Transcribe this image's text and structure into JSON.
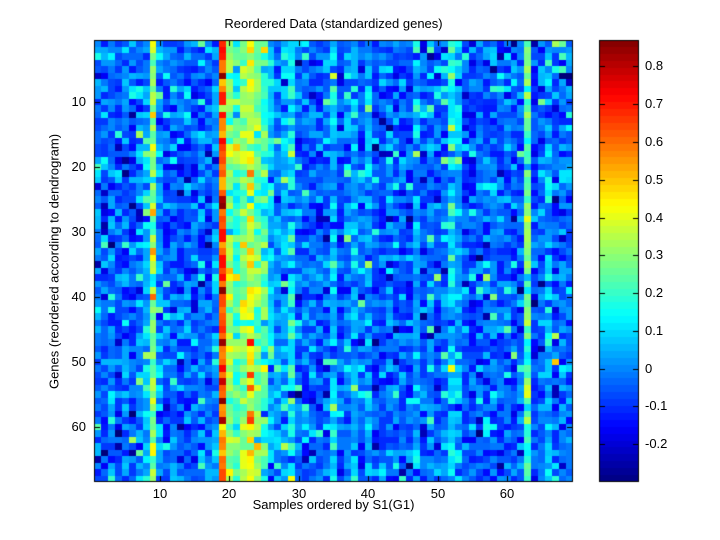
{
  "figure": {
    "background": "#ffffff",
    "text_color": "#000000",
    "axis_color": "#000000"
  },
  "chart_data": {
    "type": "heatmap",
    "title": "Reordered Data (standardized genes)",
    "xlabel": "Samples ordered by S1(G1)",
    "ylabel": "Genes (reordered according to dendrogram)",
    "n_cols": 69,
    "n_rows": 68,
    "x_ticks": [
      10,
      20,
      30,
      40,
      50,
      60
    ],
    "y_ticks": [
      10,
      20,
      30,
      40,
      50,
      60
    ],
    "colormap": "jet",
    "colormap_levels": 64,
    "color_limits": [
      -0.3,
      0.87
    ],
    "colorbar_ticks": [
      "0.8",
      "0.7",
      "0.6",
      "0.5",
      "0.4",
      "0.3",
      "0.2",
      "0.1",
      "0",
      "-0.1",
      "-0.2"
    ],
    "colorbar_tick_values": [
      0.8,
      0.7,
      0.6,
      0.5,
      0.4,
      0.3,
      0.2,
      0.1,
      0,
      -0.1,
      -0.2
    ],
    "column_means": [
      -0.04,
      -0.06,
      -0.03,
      -0.06,
      -0.02,
      -0.07,
      0.0,
      0.06,
      0.3,
      0.02,
      -0.06,
      -0.03,
      -0.07,
      -0.04,
      -0.06,
      -0.02,
      -0.05,
      0.02,
      0.63,
      0.3,
      0.24,
      0.3,
      0.38,
      0.27,
      0.21,
      0.09,
      0.01,
      0.03,
      0.12,
      -0.03,
      -0.05,
      -0.02,
      -0.06,
      -0.03,
      0.09,
      -0.05,
      -0.02,
      0.04,
      -0.05,
      0.03,
      -0.04,
      -0.06,
      -0.02,
      -0.05,
      -0.03,
      -0.06,
      0.03,
      -0.05,
      -0.02,
      -0.06,
      -0.03,
      0.09,
      0.04,
      -0.05,
      -0.07,
      -0.03,
      -0.05,
      -0.02,
      -0.06,
      -0.04,
      -0.06,
      -0.03,
      0.26,
      -0.07,
      -0.04,
      0.04,
      -0.05,
      -0.02,
      -0.04
    ],
    "noise_std": 0.0625,
    "speckle_high_prob": 0.08,
    "speckle_low_prob": 0.08,
    "seed": 42,
    "notable_cells": [
      {
        "col": 19,
        "row": 6,
        "value": 0.86
      },
      {
        "col": 19,
        "row": 53,
        "value": 0.78
      },
      {
        "col": 19,
        "row": 56,
        "value": 0.87
      },
      {
        "col": 23,
        "row": 49,
        "value": 0.45
      },
      {
        "col": 29,
        "row": 68,
        "value": 0.42
      },
      {
        "col": 9,
        "row": 64,
        "value": 0.44
      },
      {
        "col": 67,
        "row": 50,
        "value": 0.5
      },
      {
        "col": 67,
        "row": 1,
        "value": 0.33
      },
      {
        "col": 68,
        "row": 1,
        "value": 0.25
      },
      {
        "col": 68,
        "row": 3,
        "value": 0.22
      }
    ]
  }
}
